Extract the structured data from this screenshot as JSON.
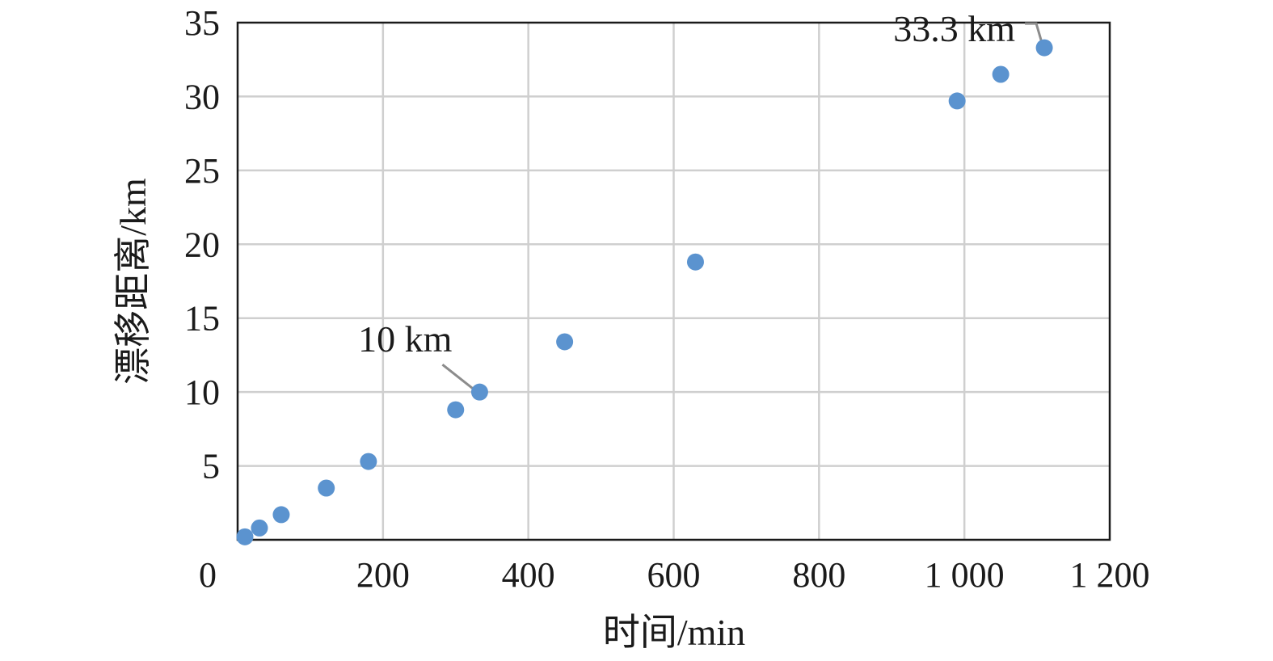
{
  "chart_data": {
    "type": "scatter",
    "xlabel": "时间/min",
    "ylabel": "漂移距离/km",
    "xlim": [
      0,
      1200
    ],
    "ylim": [
      0,
      35
    ],
    "x_ticks": [
      0,
      200,
      400,
      600,
      800,
      1000,
      1200
    ],
    "x_tick_labels": [
      "0",
      "200",
      "400",
      "600",
      "800",
      "1 000",
      "1 200"
    ],
    "y_ticks": [
      5,
      10,
      15,
      20,
      25,
      30,
      35
    ],
    "y_tick_labels": [
      "5",
      "10",
      "15",
      "20",
      "25",
      "30",
      "35"
    ],
    "grid": true,
    "marker_color": "#5b93cf",
    "points": [
      {
        "x": 10,
        "y": 0.2
      },
      {
        "x": 30,
        "y": 0.8
      },
      {
        "x": 60,
        "y": 1.7
      },
      {
        "x": 122,
        "y": 3.5
      },
      {
        "x": 180,
        "y": 5.3
      },
      {
        "x": 300,
        "y": 8.8
      },
      {
        "x": 333,
        "y": 10.0
      },
      {
        "x": 450,
        "y": 13.4
      },
      {
        "x": 630,
        "y": 18.8
      },
      {
        "x": 990,
        "y": 29.7
      },
      {
        "x": 1050,
        "y": 31.5
      },
      {
        "x": 1110,
        "y": 33.3
      }
    ],
    "annotations": [
      {
        "text": "10 km",
        "point_index": 6
      },
      {
        "text": "33.3 km",
        "point_index": 11
      }
    ]
  }
}
